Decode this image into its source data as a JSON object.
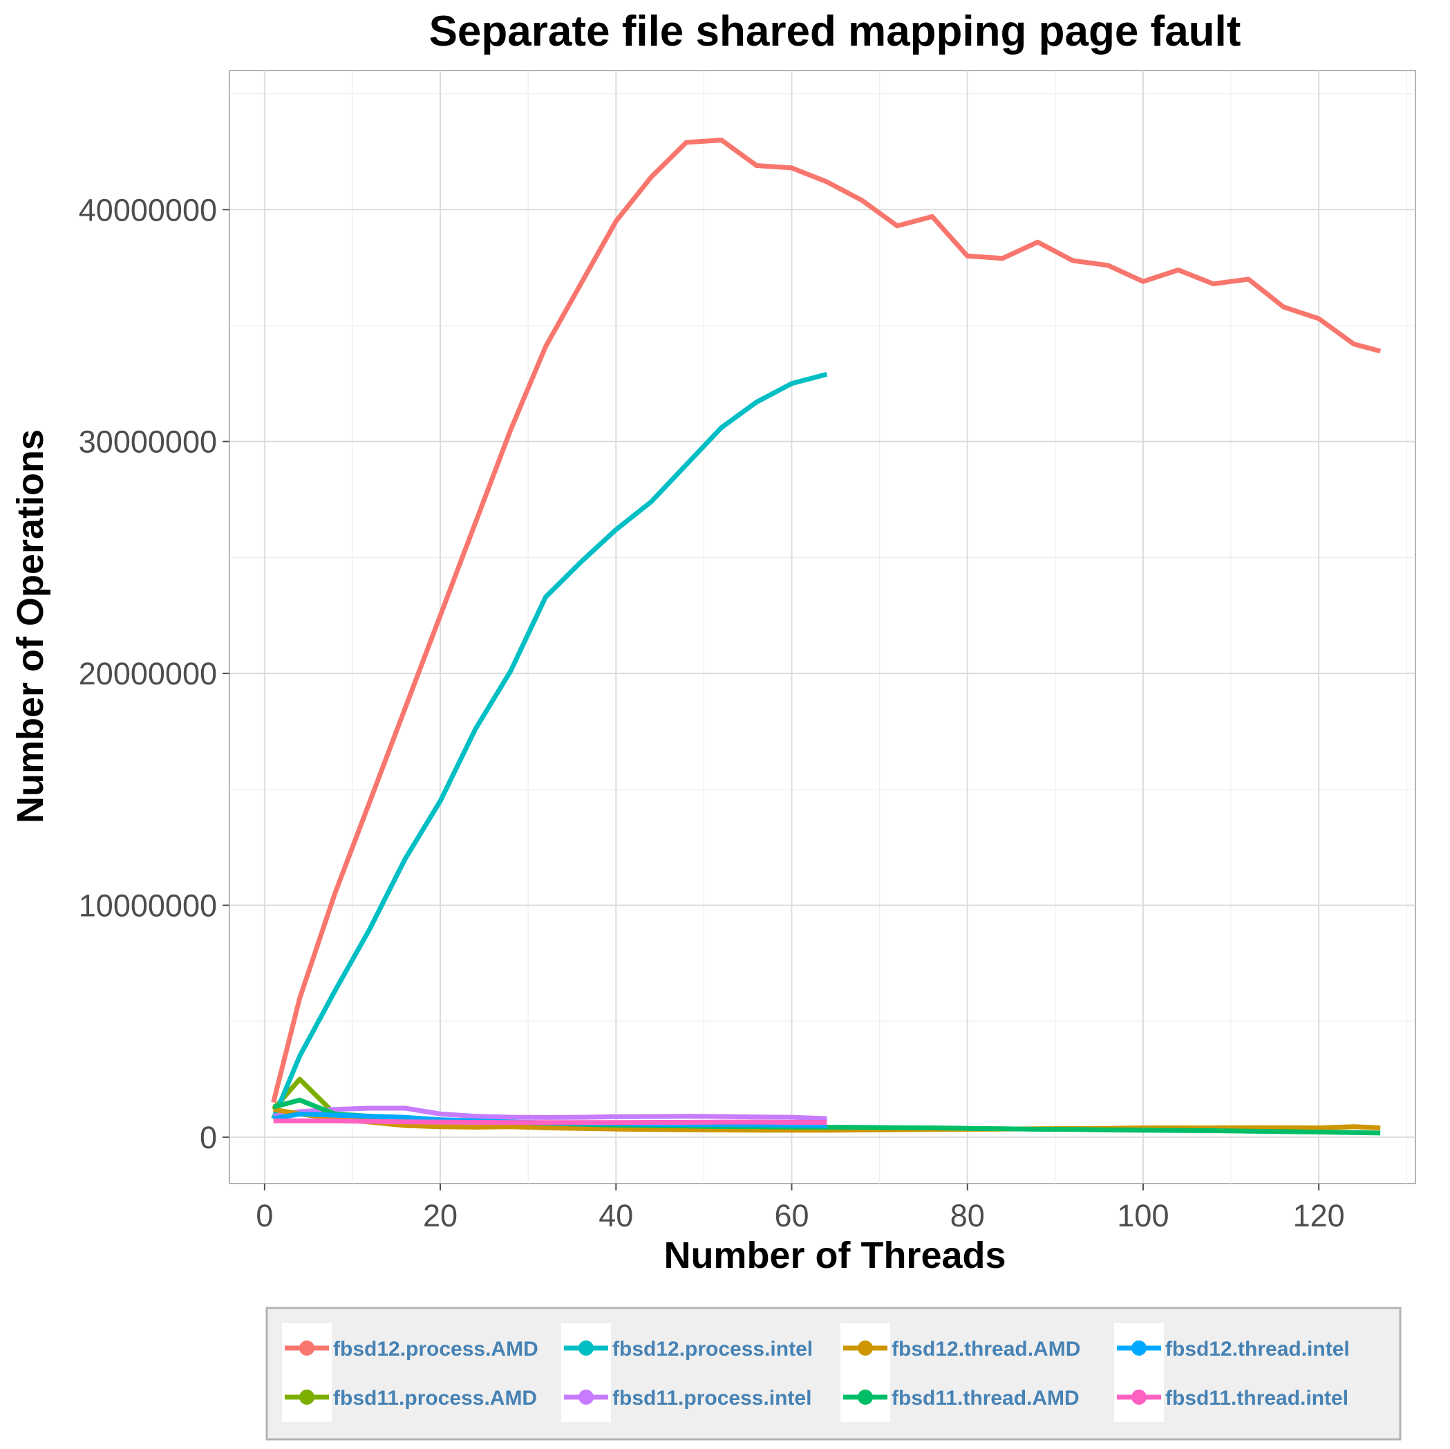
{
  "chart_data": {
    "type": "line",
    "title": "Separate file shared mapping page fault",
    "xlabel": "Number of Threads",
    "ylabel": "Number of Operations",
    "xlim": [
      -4,
      131
    ],
    "ylim": [
      -2000000,
      46000000
    ],
    "x_ticks": [
      0,
      20,
      40,
      60,
      80,
      100,
      120
    ],
    "y_ticks": [
      0,
      10000000,
      20000000,
      30000000,
      40000000
    ],
    "x_tick_labels": [
      "0",
      "20",
      "40",
      "60",
      "80",
      "100",
      "120"
    ],
    "y_tick_labels": [
      "0",
      "10000000",
      "20000000",
      "30000000",
      "40000000"
    ],
    "grid": true,
    "legend_position": "bottom",
    "series": [
      {
        "name": "fbsd12.process.AMD",
        "color": "#f8766d",
        "x": [
          1,
          4,
          8,
          12,
          16,
          20,
          24,
          28,
          32,
          36,
          40,
          44,
          48,
          52,
          56,
          60,
          64,
          68,
          72,
          76,
          80,
          84,
          88,
          92,
          96,
          100,
          104,
          108,
          112,
          116,
          120,
          124,
          127
        ],
        "y": [
          1500000,
          6000000,
          10500000,
          14500000,
          18500000,
          22500000,
          26500000,
          30500000,
          34100000,
          36800000,
          39500000,
          41400000,
          42900000,
          43000000,
          41900000,
          41800000,
          41200000,
          40400000,
          39300000,
          39700000,
          38000000,
          37900000,
          38600000,
          37800000,
          37600000,
          36900000,
          37400000,
          36800000,
          37000000,
          35800000,
          35300000,
          34200000,
          33900000
        ]
      },
      {
        "name": "fbsd11.process.AMD",
        "color": "#7cae00",
        "x": [
          1,
          4,
          8,
          12,
          16,
          20,
          24,
          28,
          32
        ],
        "y": [
          1200000,
          2500000,
          1000000,
          800000,
          700000,
          650000,
          600000,
          600000,
          550000
        ]
      },
      {
        "name": "fbsd12.process.intel",
        "color": "#00bfc4",
        "x": [
          1,
          4,
          8,
          12,
          16,
          20,
          24,
          28,
          32,
          36,
          40,
          44,
          48,
          52,
          56,
          60,
          64
        ],
        "y": [
          800000,
          3500000,
          6300000,
          9000000,
          12000000,
          14500000,
          17600000,
          20100000,
          23300000,
          24800000,
          26200000,
          27400000,
          29000000,
          30600000,
          31700000,
          32500000,
          32900000
        ]
      },
      {
        "name": "fbsd11.process.intel",
        "color": "#c77cff",
        "x": [
          1,
          4,
          8,
          12,
          16,
          20,
          24,
          28,
          32,
          36,
          40,
          44,
          48,
          52,
          56,
          60,
          64
        ],
        "y": [
          900000,
          1100000,
          1200000,
          1250000,
          1250000,
          1000000,
          900000,
          860000,
          850000,
          860000,
          880000,
          890000,
          900000,
          890000,
          870000,
          860000,
          800000
        ]
      },
      {
        "name": "fbsd12.thread.AMD",
        "color": "#cd9600",
        "x": [
          1,
          4,
          8,
          12,
          16,
          20,
          24,
          28,
          32,
          36,
          40,
          44,
          48,
          52,
          56,
          60,
          64,
          68,
          72,
          76,
          80,
          84,
          88,
          92,
          96,
          100,
          104,
          108,
          112,
          116,
          120,
          124,
          127
        ],
        "y": [
          1200000,
          1000000,
          800000,
          650000,
          500000,
          450000,
          430000,
          450000,
          400000,
          380000,
          350000,
          330000,
          320000,
          310000,
          300000,
          300000,
          300000,
          310000,
          320000,
          330000,
          340000,
          350000,
          360000,
          370000,
          380000,
          400000,
          400000,
          400000,
          410000,
          410000,
          400000,
          450000,
          400000
        ]
      },
      {
        "name": "fbsd11.thread.AMD",
        "color": "#00be67",
        "x": [
          1,
          4,
          8,
          12,
          16,
          20,
          24,
          28,
          32,
          36,
          40,
          44,
          48,
          52,
          56,
          60,
          64,
          68,
          72,
          76,
          80,
          84,
          88,
          92,
          96,
          100,
          104,
          108,
          112,
          116,
          120,
          124,
          127
        ],
        "y": [
          1300000,
          1600000,
          1000000,
          900000,
          850000,
          750000,
          700000,
          650000,
          600000,
          560000,
          520000,
          500000,
          480000,
          460000,
          450000,
          440000,
          430000,
          420000,
          410000,
          400000,
          380000,
          360000,
          340000,
          330000,
          310000,
          300000,
          290000,
          280000,
          260000,
          240000,
          220000,
          200000,
          180000
        ]
      },
      {
        "name": "fbsd12.thread.intel",
        "color": "#00a9ff",
        "x": [
          1,
          4,
          8,
          12,
          16,
          20,
          24,
          28,
          32,
          36,
          40,
          44,
          48,
          52,
          56,
          60,
          64
        ],
        "y": [
          800000,
          1000000,
          950000,
          900000,
          850000,
          750000,
          700000,
          650000,
          620000,
          600000,
          580000,
          560000,
          550000,
          540000,
          530000,
          520000,
          500000
        ]
      },
      {
        "name": "fbsd11.thread.intel",
        "color": "#ff61c3",
        "x": [
          1,
          4,
          8,
          12,
          16,
          20,
          24,
          28,
          32,
          36,
          40,
          44,
          48,
          52,
          56,
          60,
          64
        ],
        "y": [
          700000,
          700000,
          700000,
          680000,
          660000,
          650000,
          640000,
          630000,
          630000,
          630000,
          630000,
          640000,
          640000,
          650000,
          650000,
          640000,
          640000
        ]
      }
    ]
  }
}
